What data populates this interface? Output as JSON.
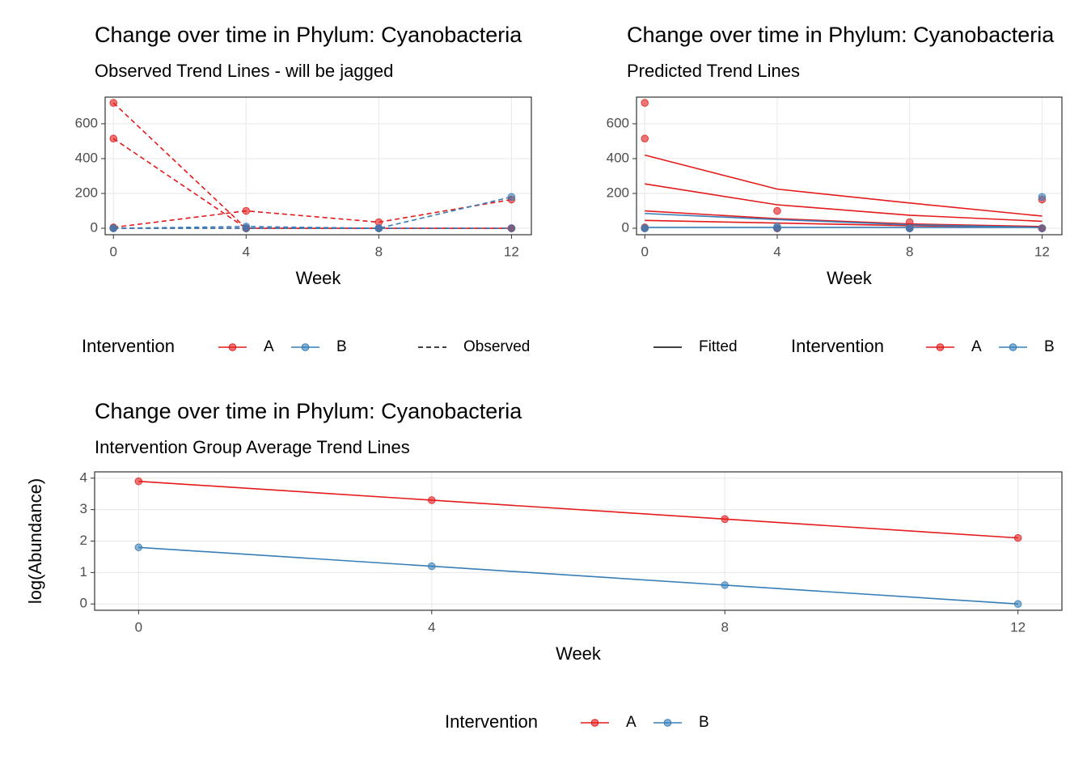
{
  "chart_data": [
    {
      "type": "line",
      "title": "Change over time in Phylum: Cyanobacteria",
      "subtitle": "Observed Trend Lines - will be jagged",
      "x_label": "Week",
      "x": [
        0,
        4,
        8,
        12
      ],
      "xlim": [
        -0.25,
        12.6
      ],
      "xticks": [
        0,
        4,
        8,
        12
      ],
      "ylim": [
        -37,
        753
      ],
      "yticks": [
        0,
        200,
        400,
        600
      ],
      "grid": true,
      "linestyle": "dashed",
      "series": [
        {
          "color": "#e41a1c",
          "values": [
            720,
            0,
            0,
            0
          ]
        },
        {
          "color": "#e41a1c",
          "values": [
            515,
            0,
            0,
            0
          ]
        },
        {
          "color": "#e41a1c",
          "values": [
            5,
            100,
            35,
            165
          ]
        },
        {
          "color": "#e41a1c",
          "values": [
            0,
            0,
            0,
            0
          ]
        },
        {
          "color": "#377eb8",
          "values": [
            0,
            10,
            0,
            180
          ]
        },
        {
          "color": "#377eb8",
          "values": [
            0,
            0,
            0,
            0
          ]
        }
      ],
      "legend": {
        "title": "Intervention",
        "items": [
          {
            "label": "A",
            "color": "#e41a1c"
          },
          {
            "label": "B",
            "color": "#377eb8"
          }
        ],
        "linetype_label": "Observed"
      }
    },
    {
      "type": "line",
      "title": "Change over time in Phylum: Cyanobacteria",
      "subtitle": "Predicted Trend Lines",
      "x_label": "Week",
      "x": [
        0,
        4,
        8,
        12
      ],
      "xlim": [
        -0.25,
        12.6
      ],
      "xticks": [
        0,
        4,
        8,
        12
      ],
      "ylim": [
        -37,
        753
      ],
      "yticks": [
        0,
        200,
        400,
        600
      ],
      "grid": true,
      "linestyle": "solid",
      "series": [
        {
          "color": "#e41a1c",
          "values": [
            720,
            0,
            0,
            0
          ],
          "fitted": [
            420,
            225,
            145,
            70
          ]
        },
        {
          "color": "#e41a1c",
          "values": [
            515,
            0,
            0,
            0
          ],
          "fitted": [
            255,
            135,
            75,
            40
          ]
        },
        {
          "color": "#e41a1c",
          "values": [
            5,
            100,
            35,
            165
          ],
          "fitted": [
            100,
            55,
            25,
            10
          ]
        },
        {
          "color": "#e41a1c",
          "values": [
            0,
            0,
            0,
            0
          ],
          "fitted": [
            45,
            30,
            15,
            5
          ]
        },
        {
          "color": "#377eb8",
          "values": [
            0,
            10,
            0,
            180
          ],
          "fitted": [
            85,
            50,
            20,
            5
          ]
        },
        {
          "color": "#377eb8",
          "values": [
            0,
            0,
            0,
            0
          ],
          "fitted": [
            5,
            5,
            5,
            5
          ]
        }
      ],
      "legend": {
        "title": "Intervention",
        "items": [
          {
            "label": "A",
            "color": "#e41a1c"
          },
          {
            "label": "B",
            "color": "#377eb8"
          }
        ],
        "linetype_label": "Fitted"
      }
    },
    {
      "type": "line",
      "title": "Change over time in Phylum: Cyanobacteria",
      "subtitle": "Intervention Group Average Trend Lines",
      "x_label": "Week",
      "y_label": "log(Abundance)",
      "x": [
        0,
        4,
        8,
        12
      ],
      "xlim": [
        -0.6,
        12.6
      ],
      "xticks": [
        0,
        4,
        8,
        12
      ],
      "ylim": [
        -0.2,
        4.2
      ],
      "yticks": [
        0,
        1,
        2,
        3,
        4
      ],
      "grid": true,
      "linestyle": "solid",
      "series": [
        {
          "color": "#e41a1c",
          "values": [
            3.9,
            3.3,
            2.7,
            2.1
          ]
        },
        {
          "color": "#377eb8",
          "values": [
            1.8,
            1.2,
            0.6,
            0
          ]
        }
      ],
      "legend": {
        "title": "Intervention",
        "items": [
          {
            "label": "A",
            "color": "#e41a1c"
          },
          {
            "label": "B",
            "color": "#377eb8"
          }
        ]
      }
    }
  ]
}
